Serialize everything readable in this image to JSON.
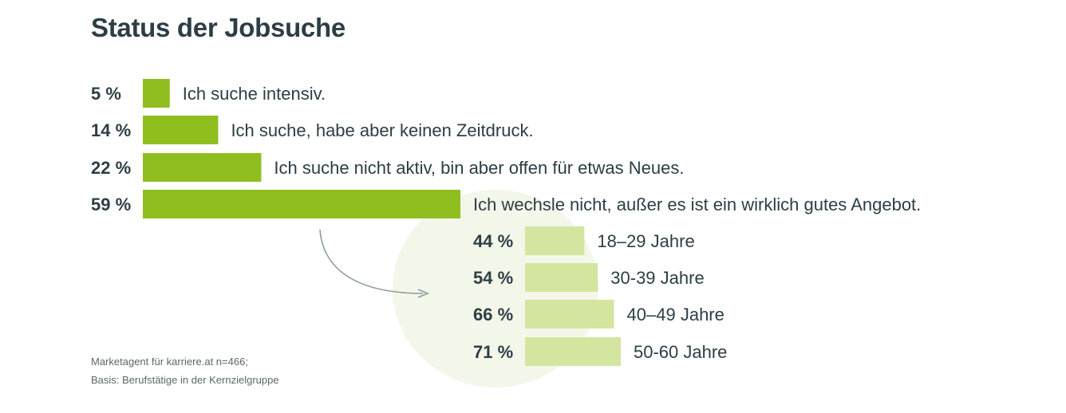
{
  "chart_data": [
    {
      "type": "bar",
      "orientation": "horizontal",
      "title": "Status der Jobsuche",
      "categories": [
        "Ich suche intensiv.",
        "Ich suche, habe aber keinen Zeitdruck.",
        "Ich suche nicht aktiv, bin aber offen für etwas Neues.",
        "Ich wechsle nicht, außer es ist ein wirklich gutes Angebot."
      ],
      "values": [
        5,
        14,
        22,
        59
      ],
      "value_labels": [
        "5 %",
        "14 %",
        "22 %",
        "59 %"
      ],
      "unit": "%",
      "color": "#8fbe1e"
    },
    {
      "type": "bar",
      "orientation": "horizontal",
      "categories": [
        "18–29 Jahre",
        "30-39 Jahre",
        "40–49 Jahre",
        "50-60 Jahre"
      ],
      "values": [
        44,
        54,
        66,
        71
      ],
      "value_labels": [
        "44 %",
        "54 %",
        "66 %",
        "71 %"
      ],
      "unit": "%",
      "color": "#d3e59f"
    }
  ],
  "source": {
    "line1": "Marketagent für karriere.at n=466;",
    "line2": "Basis: Berufstätige in der Kernzielgruppe"
  },
  "colors": {
    "text": "#2c3e44",
    "arrow": "#8a9ca0",
    "circle": "#f3f7e9"
  }
}
